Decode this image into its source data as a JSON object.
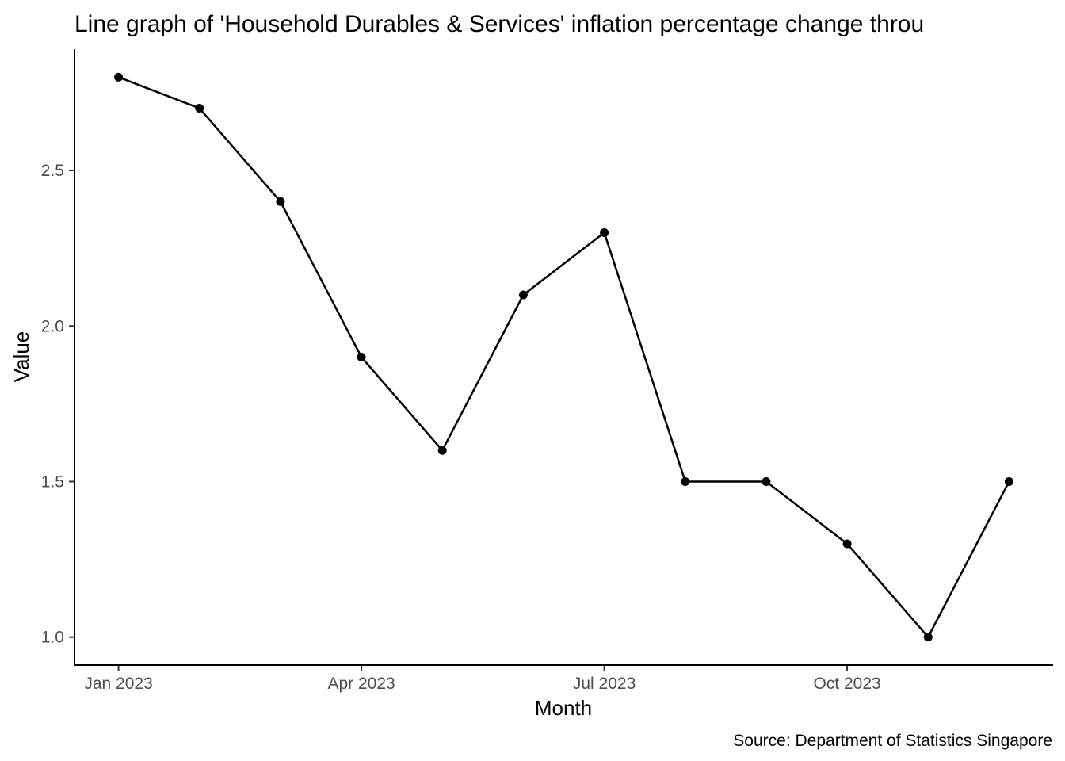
{
  "chart_data": {
    "type": "line",
    "title": "Line graph of 'Household Durables & Services' inflation percentage change throu",
    "xlabel": "Month",
    "ylabel": "Value",
    "caption": "Source: Department of Statistics Singapore",
    "x": [
      "2023-01",
      "2023-02",
      "2023-03",
      "2023-04",
      "2023-05",
      "2023-06",
      "2023-07",
      "2023-08",
      "2023-09",
      "2023-10",
      "2023-11",
      "2023-12"
    ],
    "values": [
      2.8,
      2.7,
      2.4,
      1.9,
      1.6,
      2.1,
      2.3,
      1.5,
      1.5,
      1.3,
      1.0,
      1.5
    ],
    "x_ticks": [
      {
        "x": "2023-01",
        "label": "Jan 2023"
      },
      {
        "x": "2023-04",
        "label": "Apr 2023"
      },
      {
        "x": "2023-07",
        "label": "Jul 2023"
      },
      {
        "x": "2023-10",
        "label": "Oct 2023"
      }
    ],
    "y_ticks": [
      {
        "value": 1.0,
        "label": "1.0"
      },
      {
        "value": 1.5,
        "label": "1.5"
      },
      {
        "value": 2.0,
        "label": "2.0"
      },
      {
        "value": 2.5,
        "label": "2.5"
      }
    ],
    "ylim": [
      0.91,
      2.89
    ],
    "grid": false,
    "line_color": "#000000",
    "point_color": "#000000"
  }
}
